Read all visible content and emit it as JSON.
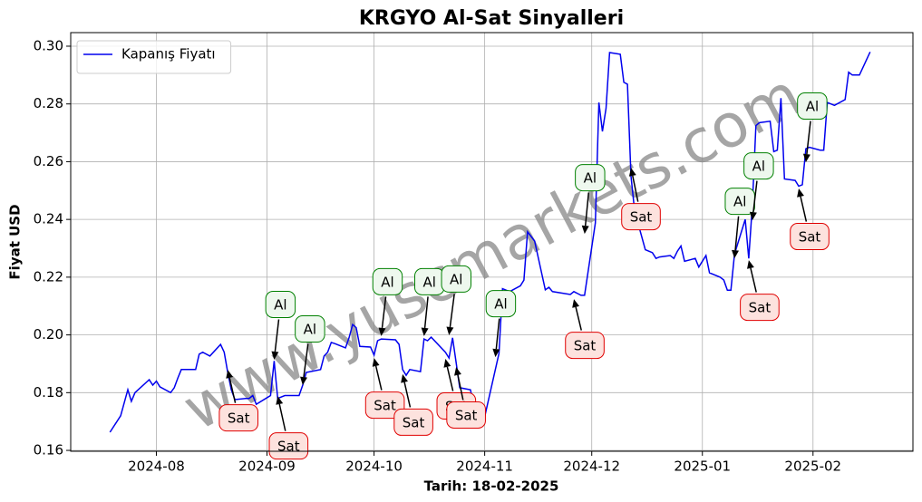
{
  "chart_data": {
    "type": "line",
    "title": "KRGYO Al-Sat Sinyalleri",
    "xlabel": "Tarih: 18-02-2025",
    "ylabel": "Fiyat USD",
    "watermark": "www.yuscmarkets.com",
    "legend": "upper left",
    "grid": true,
    "xlim": [
      "2024-07-08",
      "2025-03-01"
    ],
    "xticks": [
      {
        "value": "2024-08-01",
        "label": "2024-08"
      },
      {
        "value": "2024-09-01",
        "label": "2024-09"
      },
      {
        "value": "2024-10-01",
        "label": "2024-10"
      },
      {
        "value": "2024-11-01",
        "label": "2024-11"
      },
      {
        "value": "2024-12-01",
        "label": "2024-12"
      },
      {
        "value": "2025-01-01",
        "label": "2025-01"
      },
      {
        "value": "2025-02-01",
        "label": "2025-02"
      }
    ],
    "ylim": [
      0.1597,
      0.3047
    ],
    "yticks": [
      {
        "value": 0.16,
        "label": "0.16"
      },
      {
        "value": 0.18,
        "label": "0.18"
      },
      {
        "value": 0.2,
        "label": "0.20"
      },
      {
        "value": 0.22,
        "label": "0.22"
      },
      {
        "value": 0.24,
        "label": "0.24"
      },
      {
        "value": 0.26,
        "label": "0.26"
      },
      {
        "value": 0.28,
        "label": "0.28"
      },
      {
        "value": 0.3,
        "label": "0.30"
      }
    ],
    "x": [
      "2024-07-19",
      "2024-07-22",
      "2024-07-24",
      "2024-07-25",
      "2024-07-26",
      "2024-07-30",
      "2024-07-31",
      "2024-08-01",
      "2024-08-02",
      "2024-08-05",
      "2024-08-06",
      "2024-08-07",
      "2024-08-08",
      "2024-08-12",
      "2024-08-13",
      "2024-08-14",
      "2024-08-16",
      "2024-08-19",
      "2024-08-20",
      "2024-08-21",
      "2024-08-22",
      "2024-08-23",
      "2024-08-26",
      "2024-08-27",
      "2024-08-28",
      "2024-08-29",
      "2024-09-02",
      "2024-09-03",
      "2024-09-04",
      "2024-09-06",
      "2024-09-10",
      "2024-09-11",
      "2024-09-12",
      "2024-09-16",
      "2024-09-17",
      "2024-09-18",
      "2024-09-19",
      "2024-09-20",
      "2024-09-23",
      "2024-09-24",
      "2024-09-25",
      "2024-09-26",
      "2024-09-27",
      "2024-09-30",
      "2024-10-01",
      "2024-10-02",
      "2024-10-03",
      "2024-10-07",
      "2024-10-08",
      "2024-10-09",
      "2024-10-10",
      "2024-10-11",
      "2024-10-14",
      "2024-10-15",
      "2024-10-16",
      "2024-10-17",
      "2024-10-21",
      "2024-10-22",
      "2024-10-23",
      "2024-10-24",
      "2024-10-25",
      "2024-10-28",
      "2024-10-29",
      "2024-11-01",
      "2024-11-05",
      "2024-11-06",
      "2024-11-08",
      "2024-11-11",
      "2024-11-12",
      "2024-11-13",
      "2024-11-15",
      "2024-11-18",
      "2024-11-19",
      "2024-11-20",
      "2024-11-25",
      "2024-11-26",
      "2024-11-28",
      "2024-11-29",
      "2024-12-02",
      "2024-12-03",
      "2024-12-04",
      "2024-12-05",
      "2024-12-06",
      "2024-12-09",
      "2024-12-10",
      "2024-12-11",
      "2024-12-12",
      "2024-12-13",
      "2024-12-16",
      "2024-12-17",
      "2024-12-18",
      "2024-12-19",
      "2024-12-20",
      "2024-12-23",
      "2024-12-24",
      "2024-12-25",
      "2024-12-26",
      "2024-12-27",
      "2024-12-30",
      "2024-12-31",
      "2025-01-02",
      "2025-01-03",
      "2025-01-06",
      "2025-01-07",
      "2025-01-08",
      "2025-01-09",
      "2025-01-10",
      "2025-01-13",
      "2025-01-14",
      "2025-01-15",
      "2025-01-16",
      "2025-01-17",
      "2025-01-20",
      "2025-01-21",
      "2025-01-22",
      "2025-01-23",
      "2025-01-24",
      "2025-01-27",
      "2025-01-28",
      "2025-01-29",
      "2025-01-30",
      "2025-01-31",
      "2025-02-03",
      "2025-02-04",
      "2025-02-05",
      "2025-02-06",
      "2025-02-07",
      "2025-02-10",
      "2025-02-11",
      "2025-02-12",
      "2025-02-13",
      "2025-02-14",
      "2025-02-17"
    ],
    "series": [
      {
        "name": "Kapanış Fiyatı",
        "color": "#0000ee",
        "values": [
          0.1663,
          0.172,
          0.181,
          0.177,
          0.18,
          0.1845,
          0.1826,
          0.184,
          0.182,
          0.18,
          0.1817,
          0.185,
          0.188,
          0.188,
          0.1933,
          0.194,
          0.1927,
          0.1967,
          0.194,
          0.187,
          0.181,
          0.1776,
          0.178,
          0.178,
          0.179,
          0.176,
          0.179,
          0.191,
          0.178,
          0.179,
          0.179,
          0.1826,
          0.187,
          0.188,
          0.1927,
          0.194,
          0.1974,
          0.197,
          0.1955,
          0.199,
          0.2036,
          0.2025,
          0.196,
          0.1958,
          0.193,
          0.198,
          0.1986,
          0.1983,
          0.1967,
          0.188,
          0.186,
          0.188,
          0.1873,
          0.1986,
          0.198,
          0.1992,
          0.194,
          0.192,
          0.199,
          0.1905,
          0.1817,
          0.181,
          0.1755,
          0.1716,
          0.1936,
          0.216,
          0.215,
          0.217,
          0.219,
          0.2357,
          0.2325,
          0.2156,
          0.2165,
          0.215,
          0.214,
          0.215,
          0.2137,
          0.2137,
          0.2388,
          0.2805,
          0.2705,
          0.2785,
          0.2978,
          0.2972,
          0.2875,
          0.2868,
          0.255,
          0.243,
          0.2295,
          0.229,
          0.2285,
          0.2265,
          0.227,
          0.2275,
          0.2265,
          0.229,
          0.2308,
          0.2255,
          0.2265,
          0.2235,
          0.2275,
          0.2215,
          0.22,
          0.219,
          0.2155,
          0.2155,
          0.228,
          0.24,
          0.2265,
          0.245,
          0.2725,
          0.2735,
          0.274,
          0.2635,
          0.264,
          0.282,
          0.254,
          0.2535,
          0.2515,
          0.252,
          0.2645,
          0.265,
          0.264,
          0.264,
          0.2805,
          0.28,
          0.2795,
          0.2815,
          0.291,
          0.29,
          0.29,
          0.29,
          0.298
        ]
      }
    ],
    "annotations": [
      {
        "text": "Sat",
        "x": "2024-08-21",
        "y": 0.1879,
        "color": "red"
      },
      {
        "text": "Al",
        "x": "2024-09-03",
        "y": 0.1914,
        "color": "green"
      },
      {
        "text": "Sat",
        "x": "2024-09-04",
        "y": 0.1788,
        "color": "red"
      },
      {
        "text": "Al",
        "x": "2024-09-11",
        "y": 0.1826,
        "color": "green"
      },
      {
        "text": "Sat",
        "x": "2024-10-01",
        "y": 0.192,
        "color": "red"
      },
      {
        "text": "Al",
        "x": "2024-10-03",
        "y": 0.1996,
        "color": "green"
      },
      {
        "text": "Sat",
        "x": "2024-10-09",
        "y": 0.1864,
        "color": "red"
      },
      {
        "text": "Al",
        "x": "2024-10-15",
        "y": 0.1996,
        "color": "green"
      },
      {
        "text": "Sat",
        "x": "2024-10-21",
        "y": 0.1917,
        "color": "red"
      },
      {
        "text": "Al",
        "x": "2024-10-22",
        "y": 0.1999,
        "color": "green"
      },
      {
        "text": "Sat",
        "x": "2024-10-24",
        "y": 0.1889,
        "color": "red"
      },
      {
        "text": "Al",
        "x": "2024-11-04",
        "y": 0.1923,
        "color": "green"
      },
      {
        "text": "Sat",
        "x": "2024-11-26",
        "y": 0.2124,
        "color": "red"
      },
      {
        "text": "Al",
        "x": "2024-11-29",
        "y": 0.235,
        "color": "green"
      },
      {
        "text": "Sat",
        "x": "2024-12-12",
        "y": 0.2579,
        "color": "red"
      },
      {
        "text": "Al",
        "x": "2025-01-10",
        "y": 0.2265,
        "color": "green"
      },
      {
        "text": "Sat",
        "x": "2025-01-14",
        "y": 0.2259,
        "color": "red"
      },
      {
        "text": "Al",
        "x": "2025-01-15",
        "y": 0.2397,
        "color": "green"
      },
      {
        "text": "Sat",
        "x": "2025-01-28",
        "y": 0.2507,
        "color": "red"
      },
      {
        "text": "Al",
        "x": "2025-01-30",
        "y": 0.2598,
        "color": "green"
      }
    ]
  }
}
